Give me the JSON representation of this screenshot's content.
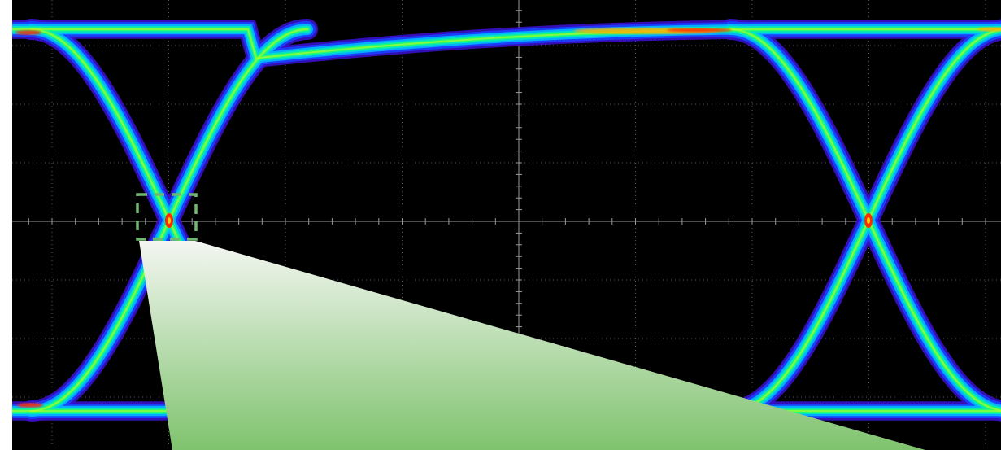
{
  "window": {
    "title": ""
  },
  "scope": {
    "display_type": "eye-diagram",
    "background_color": "#000000",
    "grid_color": "#5a5a5a",
    "axis_color": "#9a9a9a",
    "grid": true,
    "divisions": {
      "horizontal": 10,
      "vertical": 8
    },
    "persistence_palette": [
      "#3a10c8",
      "#1a40ff",
      "#00b4ff",
      "#00e5c0",
      "#30ff60",
      "#c8ff20",
      "#ffb000",
      "#ff2a00"
    ],
    "eye_crossings_visible": 2,
    "crossing_marker_color": "#ff2a00"
  },
  "zoom_box": {
    "style": "dashed",
    "color": "#70b870",
    "target": "left-crossing"
  },
  "callout": {
    "gradient_top_color": "#f4f6f2",
    "gradient_bottom_color": "#7fc36e"
  }
}
